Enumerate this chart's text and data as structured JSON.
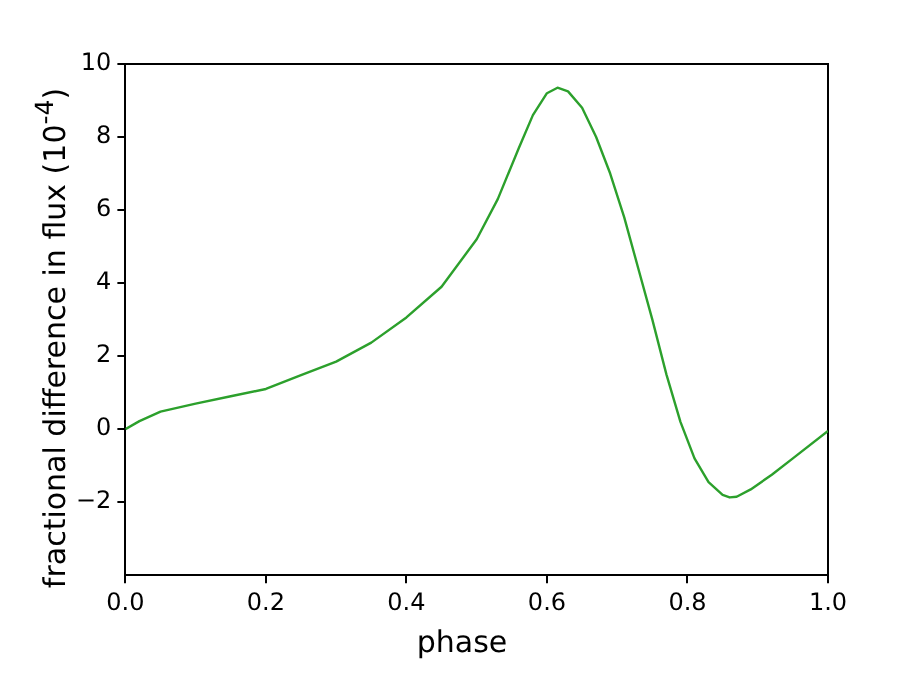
{
  "chart_data": {
    "type": "line",
    "xlabel": "phase",
    "ylabel": "fractional difference in flux (10$^{-4}$)",
    "x": [
      0,
      0.02,
      0.05,
      0.1,
      0.15,
      0.2,
      0.25,
      0.3,
      0.35,
      0.4,
      0.45,
      0.5,
      0.53,
      0.56,
      0.58,
      0.6,
      0.615,
      0.63,
      0.65,
      0.67,
      0.69,
      0.71,
      0.73,
      0.75,
      0.77,
      0.79,
      0.81,
      0.83,
      0.85,
      0.86,
      0.87,
      0.89,
      0.92,
      0.95,
      1.0
    ],
    "series": [
      {
        "color": "#2ca02c",
        "values": [
          0,
          0.22,
          0.48,
          0.7,
          0.9,
          1.1,
          1.48,
          1.85,
          2.37,
          3.06,
          3.9,
          5.2,
          6.3,
          7.7,
          8.6,
          9.2,
          9.35,
          9.25,
          8.8,
          8.0,
          7.0,
          5.8,
          4.4,
          3.0,
          1.5,
          0.2,
          -0.8,
          -1.45,
          -1.8,
          -1.87,
          -1.85,
          -1.65,
          -1.25,
          -0.8,
          -0.05
        ]
      }
    ],
    "xlim": [
      0,
      1
    ],
    "xticks": [
      {
        "value": 0,
        "label": "0.0"
      },
      {
        "value": 0.2,
        "label": "0.2"
      },
      {
        "value": 0.4,
        "label": "0.4"
      },
      {
        "value": 0.6,
        "label": "0.6"
      },
      {
        "value": 0.8,
        "label": "0.8"
      },
      {
        "value": 1,
        "label": "1.0"
      }
    ],
    "ylim": [
      -4,
      10
    ],
    "yticks": [
      -2,
      0,
      2,
      4,
      6,
      8,
      10
    ],
    "grid": false,
    "legend": false,
    "marker": "none",
    "line_style": "solid"
  }
}
